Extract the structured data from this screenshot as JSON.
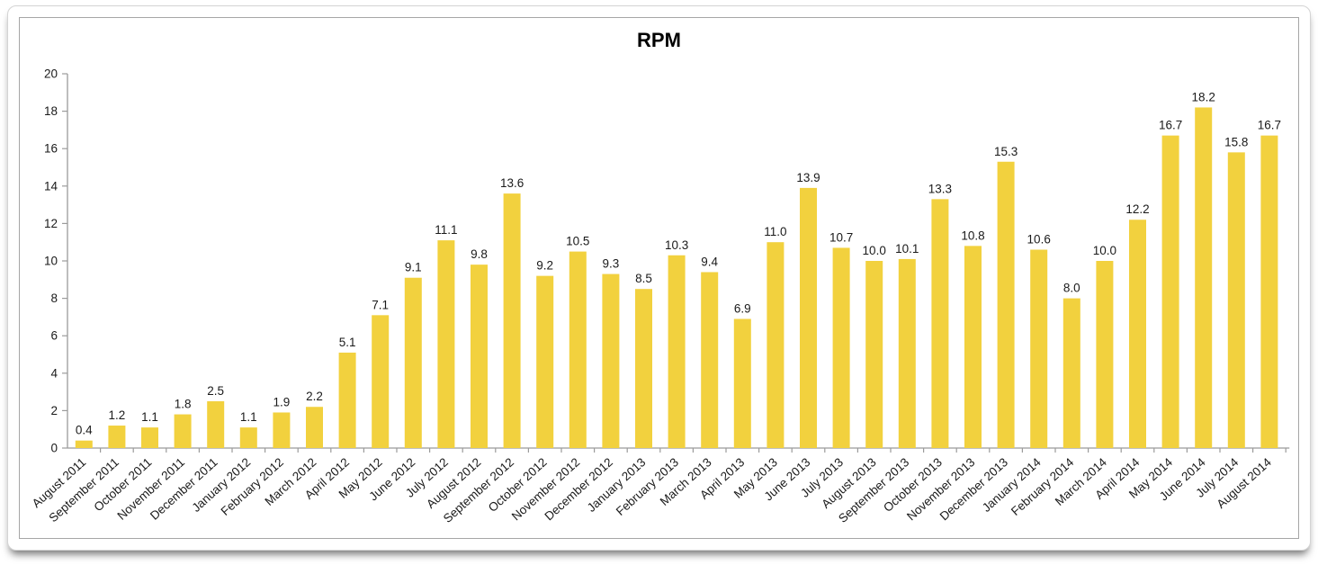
{
  "chart_data": {
    "type": "bar",
    "title": "RPM",
    "categories": [
      "August 2011",
      "September 2011",
      "October 2011",
      "November 2011",
      "December 2011",
      "January 2012",
      "February 2012",
      "March 2012",
      "April 2012",
      "May 2012",
      "June 2012",
      "July 2012",
      "August 2012",
      "September 2012",
      "October 2012",
      "November 2012",
      "December 2012",
      "January 2013",
      "February 2013",
      "March 2013",
      "April 2013",
      "May 2013",
      "June 2013",
      "July 2013",
      "August 2013",
      "September 2013",
      "October 2013",
      "November 2013",
      "December 2013",
      "January 2014",
      "February 2014",
      "March 2014",
      "April 2014",
      "May 2014",
      "June 2014",
      "July 2014",
      "August 2014"
    ],
    "values": [
      0.4,
      1.2,
      1.1,
      1.8,
      2.5,
      1.1,
      1.9,
      2.2,
      5.1,
      7.1,
      9.1,
      11.1,
      9.8,
      13.6,
      9.2,
      10.5,
      9.3,
      8.5,
      10.3,
      9.4,
      6.9,
      11.0,
      13.9,
      10.7,
      10.0,
      10.1,
      13.3,
      10.8,
      15.3,
      10.6,
      8.0,
      10.0,
      12.2,
      16.7,
      18.2,
      15.8,
      16.7
    ],
    "xlabel": "",
    "ylabel": "",
    "ylim": [
      0,
      20
    ],
    "ytick_step": 2,
    "grid": false,
    "legend": "none",
    "value_labels": true,
    "value_label_decimals": 1,
    "x_label_rotation_deg": -42,
    "bar_color": "#F2D13E",
    "axis_color": "#9B9B9B",
    "text_color": "#1a1a1a",
    "title_color": "#000000",
    "background_color": "#ffffff"
  }
}
